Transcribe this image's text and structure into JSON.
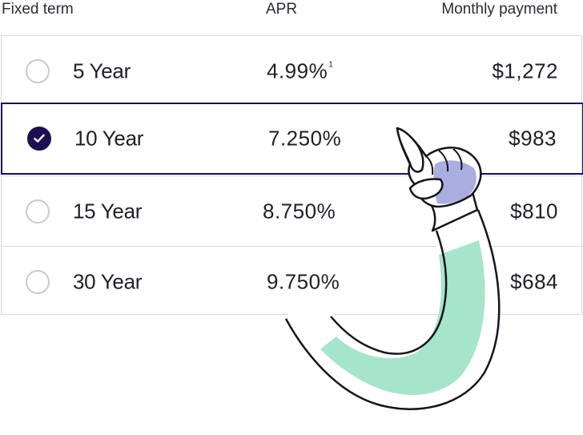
{
  "header": {
    "term_label": "Fixed term",
    "apr_label": "APR",
    "payment_label": "Monthly payment"
  },
  "rows": [
    {
      "term": "5 Year",
      "apr": "4.99%",
      "apr_footnote": "1",
      "payment": "$1,272",
      "selected": false
    },
    {
      "term": "10 Year",
      "apr": "7.250%",
      "apr_footnote": "",
      "payment": "$983",
      "selected": true
    },
    {
      "term": "15 Year",
      "apr": "8.750%",
      "apr_footnote": "",
      "payment": "$810",
      "selected": false
    },
    {
      "term": "30 Year",
      "apr": "9.750%",
      "apr_footnote": "",
      "payment": "$684",
      "selected": false
    }
  ],
  "icons": {
    "selected_radio": "check-icon",
    "illustration": "pointing-hand-illustration"
  },
  "colors": {
    "selected": "#1e0f52",
    "border": "#d9d9dd",
    "sleeve": "#a7e4cc",
    "hand_shadow": "#a9addf"
  }
}
